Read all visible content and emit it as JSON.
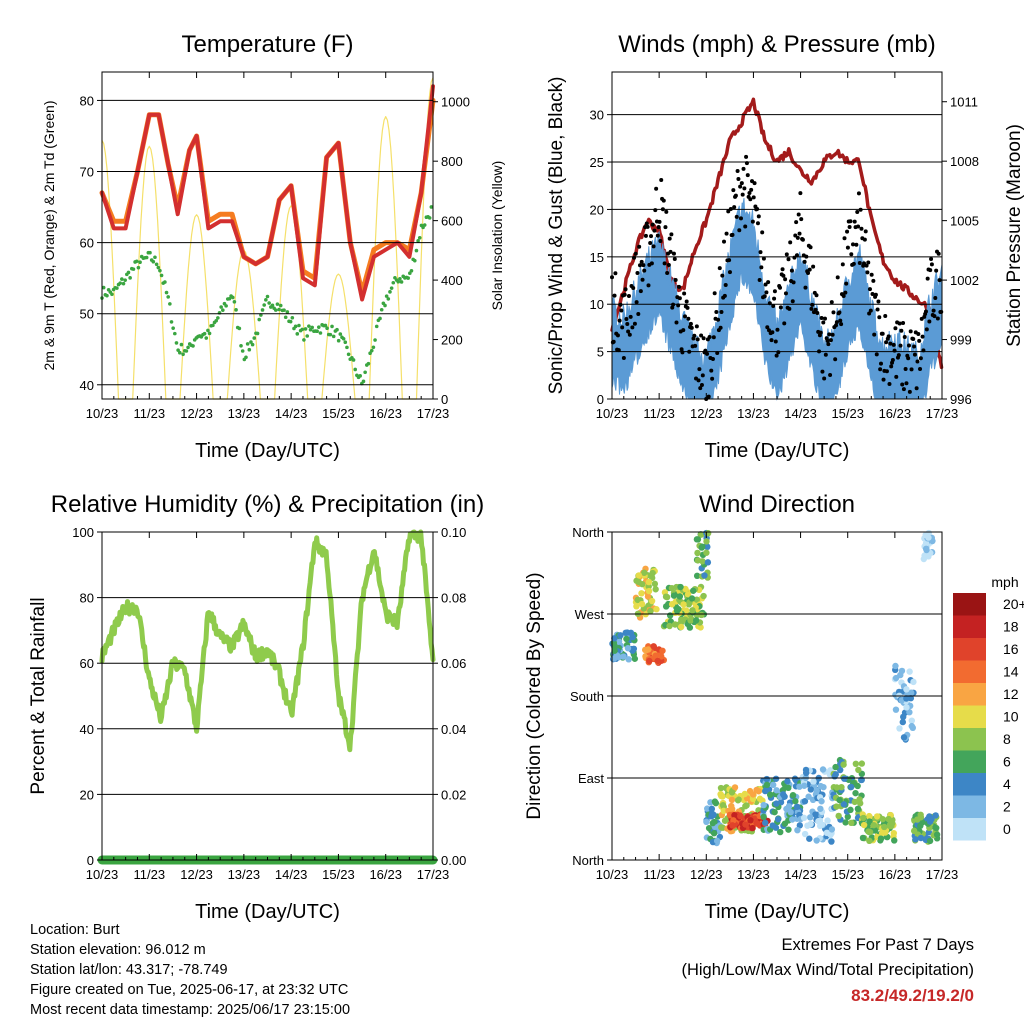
{
  "colors": {
    "temp_2m": "#d32f2f",
    "temp_9m": "#f57c20",
    "dewpoint": "#3aa540",
    "solar": "#f5e06a",
    "wind": "#5b9bd5",
    "gust": "#000000",
    "pressure": "#a31b1b",
    "rh": "#8fcb4c",
    "precip": "#3aa540",
    "extremes_value": "#c62828"
  },
  "x_ticks": [
    "10/23",
    "11/23",
    "12/23",
    "13/23",
    "14/23",
    "15/23",
    "16/23",
    "17/23"
  ],
  "chart_data": [
    {
      "id": "temperature",
      "type": "line",
      "title": "Temperature (F)",
      "xlabel": "Time (Day/UTC)",
      "ylabel": "2m & 9m T (Red, Orange) & 2m Td (Green)",
      "ylabel_right": "Solar Insolation (Yellow)",
      "ylim": [
        38,
        84
      ],
      "yticks": [
        40,
        50,
        60,
        70,
        80
      ],
      "ylim_right": [
        0,
        1100
      ],
      "yticks_right": [
        0,
        200,
        400,
        600,
        800,
        1000
      ],
      "x": [
        0,
        0.25,
        0.5,
        0.75,
        1,
        1.2,
        1.4,
        1.6,
        1.85,
        2,
        2.25,
        2.5,
        2.75,
        3,
        3.25,
        3.5,
        3.75,
        4,
        4.25,
        4.5,
        4.75,
        5,
        5.25,
        5.5,
        5.75,
        6,
        6.25,
        6.5,
        6.75,
        7
      ],
      "series": [
        {
          "name": "2m T",
          "values": [
            67,
            62,
            62,
            70,
            78,
            78,
            71,
            64,
            73,
            75,
            62,
            63,
            63,
            58,
            57,
            58,
            66,
            68,
            55,
            54,
            72,
            74,
            60,
            52,
            58,
            59,
            60,
            58,
            67,
            82
          ]
        },
        {
          "name": "9m T",
          "values": [
            67,
            63,
            63,
            70,
            78,
            78,
            71,
            65,
            73,
            75,
            63,
            64,
            64,
            58,
            57,
            58,
            66,
            68,
            56,
            55,
            72,
            74,
            60,
            53,
            59,
            60,
            60,
            59,
            67,
            80
          ]
        },
        {
          "name": "2m Td",
          "values": [
            53,
            53,
            55,
            57,
            58,
            57,
            52,
            45,
            45,
            47,
            47,
            50,
            53,
            44,
            47,
            52,
            51,
            49,
            47,
            48,
            48,
            47,
            44,
            40,
            46,
            52,
            55,
            55,
            62,
            65
          ]
        },
        {
          "name": "Solar",
          "axis": "right",
          "daily_peak": [
            870,
            850,
            620,
            500,
            650,
            420,
            950,
            1080
          ]
        }
      ]
    },
    {
      "id": "winds",
      "type": "line",
      "title": "Winds (mph) & Pressure (mb)",
      "xlabel": "Time (Day/UTC)",
      "ylabel": "Sonic/Prop Wind & Gust (Blue, Black)",
      "ylabel_right": "Station Pressure (Maroon)",
      "ylim": [
        0,
        34.5
      ],
      "yticks": [
        0,
        5,
        10,
        15,
        20,
        25,
        30
      ],
      "ylim_right": [
        996,
        1012.5
      ],
      "yticks_right": [
        996,
        999,
        1002,
        1005,
        1008,
        1011
      ],
      "x": [
        0,
        0.25,
        0.5,
        0.75,
        1,
        1.25,
        1.5,
        1.75,
        2,
        2.25,
        2.5,
        2.75,
        3,
        3.25,
        3.5,
        3.75,
        4,
        4.25,
        4.5,
        4.75,
        5,
        5.25,
        5.5,
        5.75,
        6,
        6.25,
        6.5,
        6.75,
        7
      ],
      "series": [
        {
          "name": "Wind",
          "values": [
            6,
            5,
            8,
            11,
            13,
            9,
            5,
            2,
            1,
            6,
            12,
            17,
            15,
            8,
            4,
            8,
            12,
            7,
            2,
            4,
            9,
            12,
            6,
            2,
            3,
            2,
            1,
            7,
            10
          ]
        },
        {
          "name": "Gust",
          "values": [
            10,
            8,
            12,
            15,
            21,
            14,
            8,
            5,
            3,
            9,
            17,
            23,
            20,
            12,
            8,
            12,
            18,
            12,
            5,
            8,
            15,
            18,
            10,
            6,
            5,
            4,
            4,
            11,
            13
          ]
        },
        {
          "name": "Pressure",
          "axis": "right",
          "values": [
            999.5,
            1001.5,
            1003.5,
            1005,
            1004.5,
            1002,
            1001.5,
            1003.5,
            1005,
            1007,
            1009,
            1010,
            1011,
            1009,
            1008,
            1008.5,
            1007.5,
            1007,
            1008,
            1008.5,
            1008,
            1008,
            1005,
            1003,
            1002,
            1001.5,
            1001,
            1000.5,
            997.5
          ]
        }
      ]
    },
    {
      "id": "rh_precip",
      "type": "line",
      "title": "Relative Humidity (%) & Precipitation (in)",
      "xlabel": "Time (Day/UTC)",
      "ylabel": "Percent & Total Rainfall",
      "ylim": [
        0,
        100
      ],
      "yticks": [
        0,
        20,
        40,
        60,
        80,
        100
      ],
      "ylim_right": [
        0,
        0.1
      ],
      "yticks_right": [
        "0.00",
        "0.02",
        "0.04",
        "0.06",
        "0.08",
        "0.10"
      ],
      "x": [
        0,
        0.25,
        0.5,
        0.75,
        1,
        1.25,
        1.5,
        1.75,
        2,
        2.25,
        2.5,
        2.75,
        3,
        3.25,
        3.5,
        3.75,
        4,
        4.25,
        4.5,
        4.75,
        5,
        5.25,
        5.5,
        5.75,
        6,
        6.25,
        6.5,
        6.75,
        7
      ],
      "series": [
        {
          "name": "RH",
          "values": [
            62,
            70,
            77,
            77,
            55,
            43,
            60,
            58,
            40,
            76,
            68,
            65,
            72,
            62,
            64,
            57,
            44,
            65,
            97,
            93,
            50,
            35,
            80,
            95,
            75,
            72,
            99,
            99,
            60
          ]
        },
        {
          "name": "Precip",
          "axis": "right",
          "values": [
            0,
            0,
            0,
            0,
            0,
            0,
            0,
            0,
            0,
            0,
            0,
            0,
            0,
            0,
            0,
            0,
            0,
            0,
            0,
            0,
            0,
            0,
            0,
            0,
            0,
            0,
            0,
            0,
            0
          ]
        }
      ]
    },
    {
      "id": "wind_direction",
      "type": "scatter",
      "title": "Wind Direction",
      "xlabel": "Time (Day/UTC)",
      "ylabel": "Direction (Colored By Speed)",
      "ylim": [
        0,
        360
      ],
      "yticks": [
        "North",
        "East",
        "South",
        "West",
        "North"
      ],
      "colorbar_title": "mph",
      "colorbar": [
        {
          "label": "20+",
          "color": "#9a1414"
        },
        {
          "label": "18",
          "color": "#c42222"
        },
        {
          "label": "16",
          "color": "#e0432b"
        },
        {
          "label": "14",
          "color": "#f26b30"
        },
        {
          "label": "12",
          "color": "#f9a543"
        },
        {
          "label": "10",
          "color": "#e6dc4a"
        },
        {
          "label": "8",
          "color": "#8cc34f"
        },
        {
          "label": "6",
          "color": "#43a55b"
        },
        {
          "label": "4",
          "color": "#3d86c6"
        },
        {
          "label": "2",
          "color": "#7db8e4"
        },
        {
          "label": "0",
          "color": "#bfe2f7"
        }
      ],
      "clusters": [
        {
          "x": [
            0,
            0.5
          ],
          "dir": [
            220,
            250
          ],
          "speed": 4
        },
        {
          "x": [
            0.5,
            0.95
          ],
          "dir": [
            265,
            320
          ],
          "speed": 10
        },
        {
          "x": [
            0.7,
            1.1
          ],
          "dir": [
            215,
            235
          ],
          "speed": 14
        },
        {
          "x": [
            1.1,
            1.95
          ],
          "dir": [
            255,
            300
          ],
          "speed": 8
        },
        {
          "x": [
            1.8,
            2.05
          ],
          "dir": [
            310,
            360
          ],
          "speed": 6
        },
        {
          "x": [
            2.0,
            2.3
          ],
          "dir": [
            15,
            65
          ],
          "speed": 4
        },
        {
          "x": [
            2.3,
            3.2
          ],
          "dir": [
            30,
            80
          ],
          "speed": 10
        },
        {
          "x": [
            2.5,
            3.3
          ],
          "dir": [
            35,
            50
          ],
          "speed": 16
        },
        {
          "x": [
            3.2,
            4.0
          ],
          "dir": [
            30,
            90
          ],
          "speed": 4
        },
        {
          "x": [
            4.0,
            4.7
          ],
          "dir": [
            20,
            100
          ],
          "speed": 2
        },
        {
          "x": [
            4.7,
            5.3
          ],
          "dir": [
            40,
            110
          ],
          "speed": 6
        },
        {
          "x": [
            5.3,
            6.0
          ],
          "dir": [
            20,
            50
          ],
          "speed": 8
        },
        {
          "x": [
            6.0,
            6.4
          ],
          "dir": [
            130,
            220
          ],
          "speed": 2
        },
        {
          "x": [
            6.4,
            6.9
          ],
          "dir": [
            20,
            50
          ],
          "speed": 6
        },
        {
          "x": [
            6.6,
            6.8
          ],
          "dir": [
            330,
            360
          ],
          "speed": 0
        }
      ]
    }
  ],
  "info": {
    "location": "Location: Burt",
    "elevation": "Station elevation: 96.012 m",
    "latlon": "Station lat/lon: 43.317; -78.749",
    "created": "Figure created on Tue, 2025-06-17, at 23:32 UTC",
    "timestamp": "Most recent data timestamp: 2025/06/17 23:15:00"
  },
  "extremes": {
    "title": "Extremes For Past 7 Days",
    "subtitle": "(High/Low/Max Wind/Total Precipitation)",
    "value": "83.2/49.2/19.2/0"
  }
}
